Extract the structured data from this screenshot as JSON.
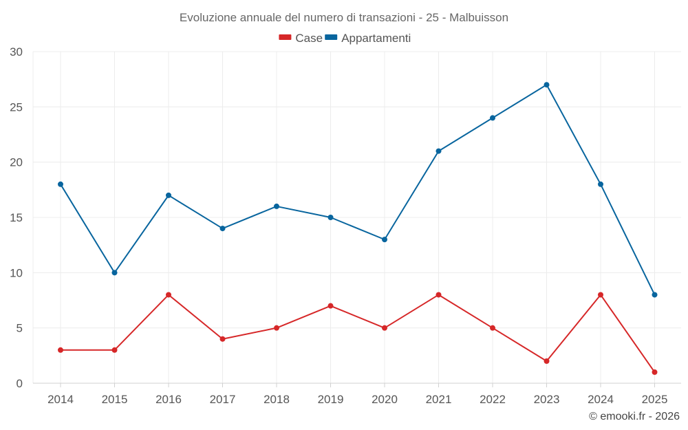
{
  "chart_data": {
    "type": "line",
    "title": "Evoluzione annuale del numero di transazioni - 25 - Malbuisson",
    "xlabel": "",
    "ylabel": "",
    "categories": [
      "2014",
      "2015",
      "2016",
      "2017",
      "2018",
      "2019",
      "2020",
      "2021",
      "2022",
      "2023",
      "2024",
      "2025"
    ],
    "ylim": [
      0,
      30
    ],
    "yticks": [
      0,
      5,
      10,
      15,
      20,
      25,
      30
    ],
    "grid": true,
    "legend_position": "top-center",
    "series": [
      {
        "name": "Case",
        "color": "#d62728",
        "values": [
          3,
          3,
          8,
          4,
          5,
          7,
          5,
          8,
          5,
          2,
          8,
          1
        ]
      },
      {
        "name": "Appartamenti",
        "color": "#08659e",
        "values": [
          18,
          10,
          17,
          14,
          16,
          15,
          13,
          21,
          24,
          27,
          18,
          8
        ]
      }
    ],
    "credit": "© emooki.fr - 2026"
  }
}
